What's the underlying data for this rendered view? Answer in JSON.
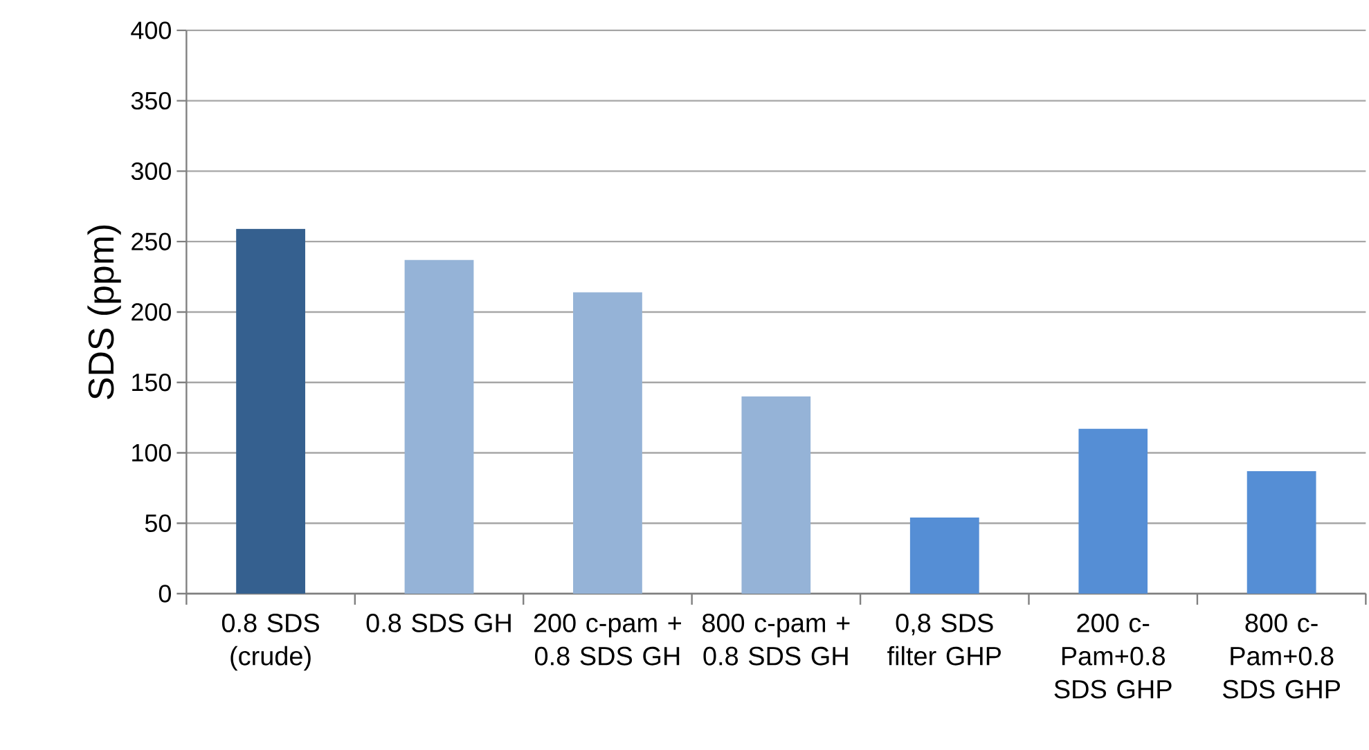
{
  "chart_data": {
    "type": "bar",
    "ylabel": "SDS (ppm)",
    "categories": [
      "0.8 SDS (crude)",
      "0.8 SDS GH",
      "200 c-pam + 0.8 SDS GH",
      "800 c-pam + 0.8 SDS GH",
      "0,8 SDS filter GHP",
      "200 c-Pam+0.8 SDS GHP",
      "800 c-Pam+0.8 SDS GHP"
    ],
    "values": [
      259,
      237,
      214,
      140,
      54,
      117,
      87
    ],
    "colors": [
      "#35608f",
      "#95b3d7",
      "#95b3d7",
      "#95b3d7",
      "#558ed5",
      "#558ed5",
      "#558ed5"
    ],
    "ylim": [
      0,
      400
    ],
    "yticks": [
      0,
      50,
      100,
      150,
      200,
      250,
      300,
      350,
      400
    ],
    "grid": "y"
  }
}
